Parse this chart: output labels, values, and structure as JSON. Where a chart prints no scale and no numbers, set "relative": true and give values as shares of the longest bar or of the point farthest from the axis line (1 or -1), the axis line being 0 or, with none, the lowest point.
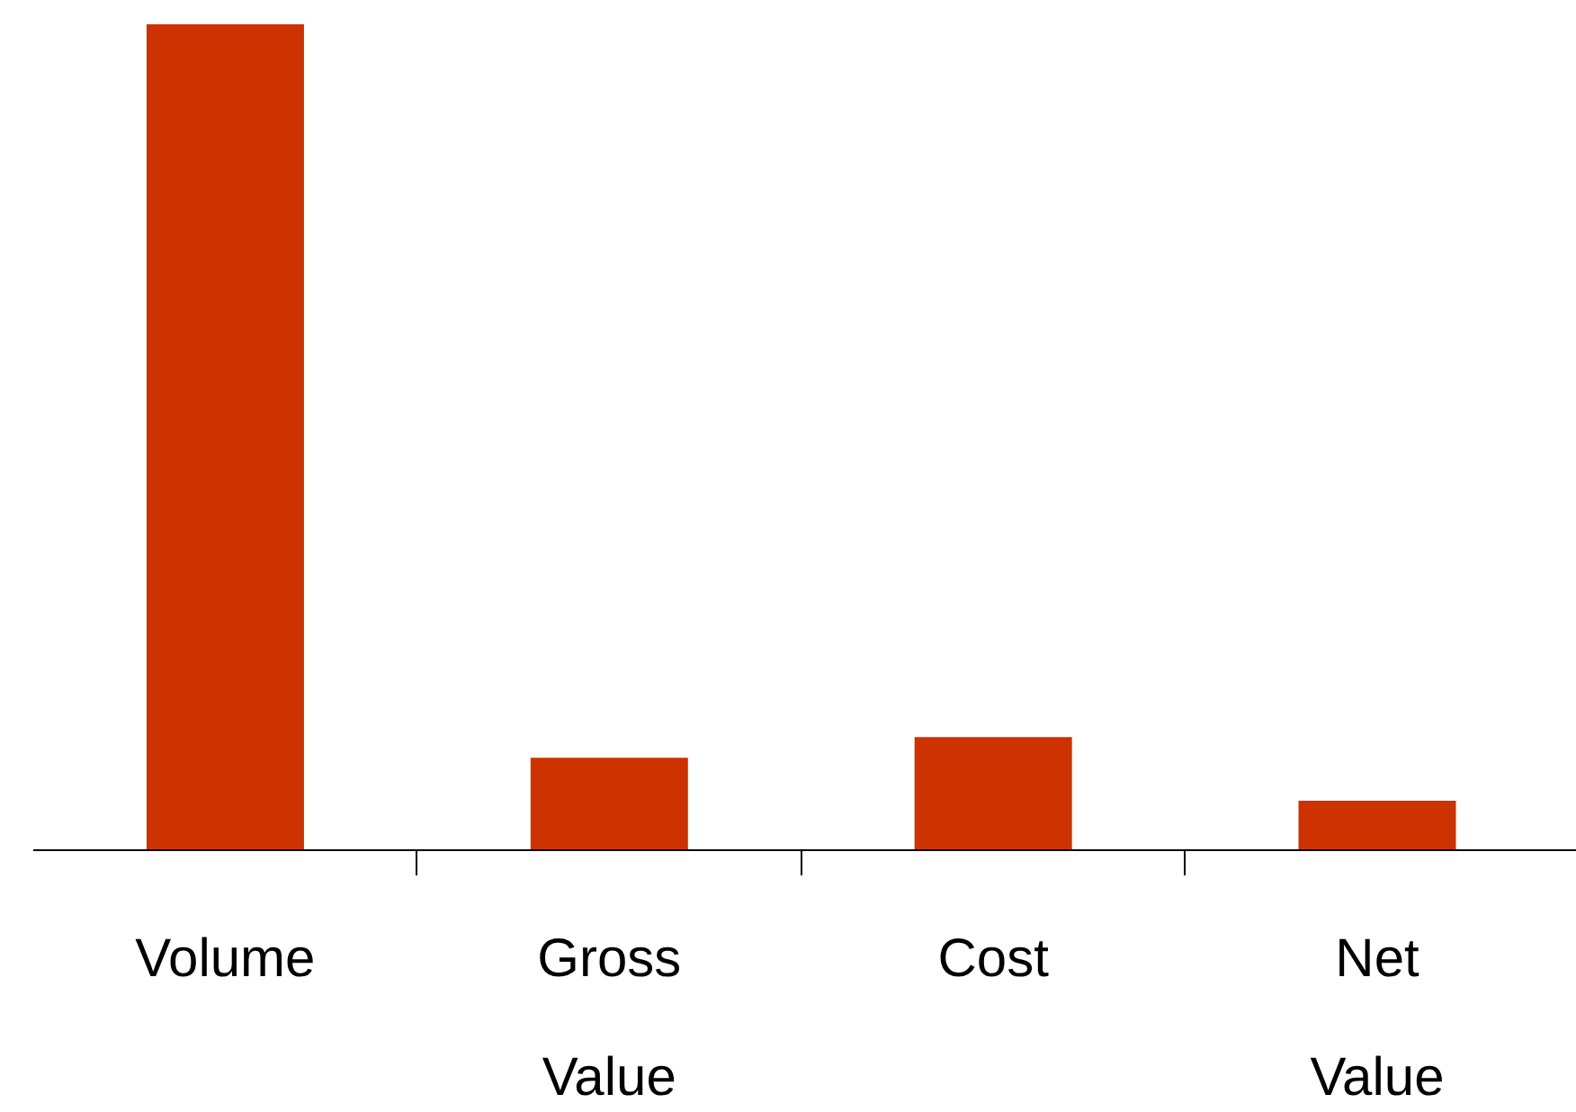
{
  "chart_data": {
    "type": "bar",
    "relative": true,
    "categories": [
      "Volume",
      "Gross Value",
      "Cost",
      "Net Value"
    ],
    "values": [
      1,
      0.112,
      0.137,
      0.06
    ],
    "color": "#cc3300",
    "grid": false
  }
}
